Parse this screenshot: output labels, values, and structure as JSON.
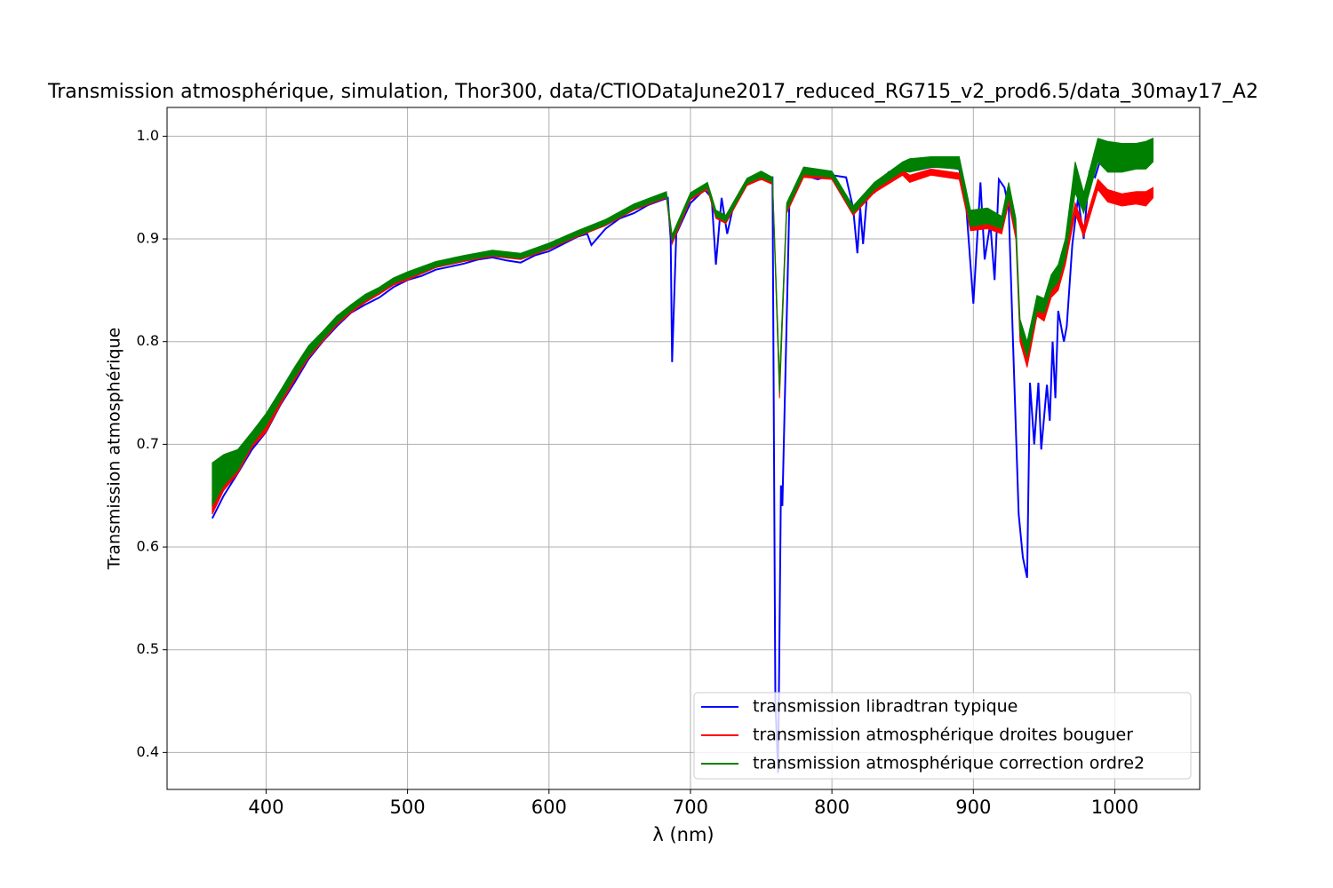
{
  "chart_data": {
    "type": "line",
    "title": "Transmission atmosphérique, simulation, Thor300, data/CTIODataJune2017_reduced_RG715_v2_prod6.5/data_30may17_A2",
    "xlabel": "λ (nm)",
    "ylabel": "Transmission atmosphérique",
    "xlim": [
      330,
      1060
    ],
    "ylim": [
      0.364,
      1.028
    ],
    "xticks": [
      400,
      500,
      600,
      700,
      800,
      900,
      1000
    ],
    "yticks": [
      0.4,
      0.5,
      0.6,
      0.7,
      0.8,
      0.9,
      {
        "value": 1,
        "label": "1.0"
      }
    ],
    "grid": true,
    "legend": "lower right",
    "series": [
      {
        "name": "transmission libradtran typique",
        "color": "#0000ff",
        "x": [
          362,
          370,
          380,
          390,
          400,
          410,
          420,
          430,
          440,
          450,
          460,
          470,
          480,
          490,
          500,
          510,
          520,
          530,
          540,
          550,
          560,
          570,
          580,
          590,
          600,
          610,
          620,
          627,
          630,
          640,
          650,
          660,
          670,
          680,
          684,
          686,
          687,
          690,
          700,
          710,
          715,
          718,
          722,
          726,
          730,
          740,
          750,
          758,
          760,
          762,
          764,
          765,
          770,
          780,
          790,
          800,
          810,
          815,
          818,
          820,
          822,
          825,
          830,
          840,
          850,
          860,
          870,
          880,
          890,
          895,
          900,
          905,
          908,
          912,
          915,
          918,
          922,
          925,
          928,
          932,
          935,
          938,
          940,
          943,
          946,
          948,
          952,
          954,
          956,
          958,
          960,
          964,
          966,
          970,
          974,
          978,
          982,
          986,
          990,
          1000,
          1010,
          1027
        ],
        "values": [
          0.628,
          0.65,
          0.672,
          0.695,
          0.712,
          0.738,
          0.76,
          0.783,
          0.8,
          0.815,
          0.828,
          0.836,
          0.843,
          0.853,
          0.86,
          0.864,
          0.87,
          0.873,
          0.876,
          0.88,
          0.882,
          0.879,
          0.877,
          0.884,
          0.888,
          0.895,
          0.902,
          0.905,
          0.894,
          0.91,
          0.92,
          0.925,
          0.933,
          0.938,
          0.94,
          0.9,
          0.78,
          0.905,
          0.935,
          0.948,
          0.94,
          0.875,
          0.94,
          0.905,
          0.93,
          0.955,
          0.958,
          0.96,
          0.45,
          0.38,
          0.66,
          0.64,
          0.94,
          0.962,
          0.958,
          0.962,
          0.96,
          0.93,
          0.886,
          0.93,
          0.895,
          0.945,
          0.945,
          0.965,
          0.968,
          0.967,
          0.97,
          0.97,
          0.968,
          0.93,
          0.837,
          0.955,
          0.88,
          0.915,
          0.86,
          0.958,
          0.95,
          0.93,
          0.8,
          0.632,
          0.59,
          0.57,
          0.76,
          0.7,
          0.76,
          0.695,
          0.758,
          0.723,
          0.8,
          0.745,
          0.83,
          0.8,
          0.815,
          0.895,
          0.94,
          0.9,
          0.965,
          0.96,
          0.978,
          0.98,
          0.982,
          0.983
        ]
      },
      {
        "name": "transmission atmosphérique droites bouguer",
        "color": "#ff0000",
        "x": [
          362,
          370,
          380,
          390,
          400,
          410,
          420,
          430,
          440,
          450,
          460,
          470,
          480,
          490,
          500,
          520,
          540,
          560,
          580,
          600,
          620,
          640,
          660,
          683,
          687,
          700,
          712,
          718,
          725,
          740,
          750,
          758,
          763,
          768,
          780,
          800,
          815,
          830,
          850,
          855,
          870,
          890,
          898,
          910,
          920,
          925,
          930,
          933,
          938,
          945,
          950,
          955,
          960,
          965,
          972,
          978,
          988,
          995,
          1005,
          1015,
          1022,
          1027
        ],
        "lower": [
          0.632,
          0.655,
          0.672,
          0.697,
          0.712,
          0.738,
          0.762,
          0.784,
          0.8,
          0.816,
          0.828,
          0.838,
          0.846,
          0.855,
          0.86,
          0.872,
          0.878,
          0.883,
          0.88,
          0.89,
          0.902,
          0.913,
          0.928,
          0.94,
          0.895,
          0.938,
          0.948,
          0.92,
          0.915,
          0.952,
          0.958,
          0.953,
          0.745,
          0.925,
          0.96,
          0.958,
          0.923,
          0.945,
          0.962,
          0.955,
          0.962,
          0.958,
          0.908,
          0.91,
          0.905,
          0.935,
          0.9,
          0.8,
          0.775,
          0.825,
          0.82,
          0.843,
          0.85,
          0.875,
          0.925,
          0.902,
          0.948,
          0.936,
          0.932,
          0.934,
          0.932,
          0.94
        ],
        "upper": [
          0.647,
          0.668,
          0.684,
          0.708,
          0.724,
          0.748,
          0.772,
          0.792,
          0.808,
          0.822,
          0.834,
          0.843,
          0.851,
          0.86,
          0.866,
          0.876,
          0.882,
          0.887,
          0.884,
          0.894,
          0.906,
          0.917,
          0.932,
          0.944,
          0.9,
          0.943,
          0.952,
          0.925,
          0.92,
          0.957,
          0.963,
          0.958,
          0.76,
          0.932,
          0.965,
          0.963,
          0.928,
          0.95,
          0.967,
          0.962,
          0.968,
          0.964,
          0.915,
          0.918,
          0.912,
          0.942,
          0.91,
          0.81,
          0.79,
          0.84,
          0.832,
          0.855,
          0.862,
          0.888,
          0.935,
          0.912,
          0.958,
          0.948,
          0.944,
          0.946,
          0.946,
          0.95
        ]
      },
      {
        "name": "transmission atmosphérique correction ordre2",
        "color": "#008000",
        "x": [
          362,
          370,
          380,
          390,
          400,
          410,
          420,
          430,
          440,
          450,
          460,
          470,
          480,
          490,
          500,
          520,
          540,
          560,
          580,
          600,
          620,
          640,
          660,
          683,
          687,
          700,
          712,
          718,
          725,
          740,
          750,
          758,
          763,
          768,
          780,
          800,
          815,
          830,
          850,
          855,
          870,
          890,
          898,
          910,
          920,
          925,
          930,
          933,
          938,
          945,
          950,
          955,
          960,
          965,
          972,
          978,
          988,
          995,
          1005,
          1015,
          1022,
          1027
        ],
        "lower": [
          0.64,
          0.66,
          0.675,
          0.7,
          0.718,
          0.742,
          0.765,
          0.786,
          0.802,
          0.818,
          0.83,
          0.84,
          0.848,
          0.857,
          0.862,
          0.873,
          0.879,
          0.884,
          0.881,
          0.891,
          0.903,
          0.914,
          0.929,
          0.941,
          0.898,
          0.94,
          0.95,
          0.922,
          0.917,
          0.954,
          0.96,
          0.955,
          0.75,
          0.928,
          0.963,
          0.96,
          0.925,
          0.948,
          0.966,
          0.965,
          0.97,
          0.968,
          0.912,
          0.915,
          0.91,
          0.94,
          0.908,
          0.808,
          0.785,
          0.83,
          0.828,
          0.85,
          0.858,
          0.882,
          0.945,
          0.925,
          0.975,
          0.965,
          0.965,
          0.968,
          0.968,
          0.975
        ],
        "upper": [
          0.682,
          0.69,
          0.695,
          0.712,
          0.73,
          0.752,
          0.775,
          0.796,
          0.81,
          0.825,
          0.836,
          0.846,
          0.853,
          0.862,
          0.868,
          0.878,
          0.884,
          0.889,
          0.886,
          0.896,
          0.908,
          0.919,
          0.934,
          0.946,
          0.904,
          0.945,
          0.955,
          0.928,
          0.923,
          0.959,
          0.966,
          0.96,
          0.765,
          0.935,
          0.97,
          0.966,
          0.932,
          0.955,
          0.975,
          0.978,
          0.98,
          0.98,
          0.928,
          0.93,
          0.922,
          0.955,
          0.92,
          0.822,
          0.8,
          0.845,
          0.842,
          0.865,
          0.875,
          0.9,
          0.975,
          0.945,
          0.998,
          0.995,
          0.993,
          0.993,
          0.995,
          0.998
        ]
      }
    ]
  }
}
